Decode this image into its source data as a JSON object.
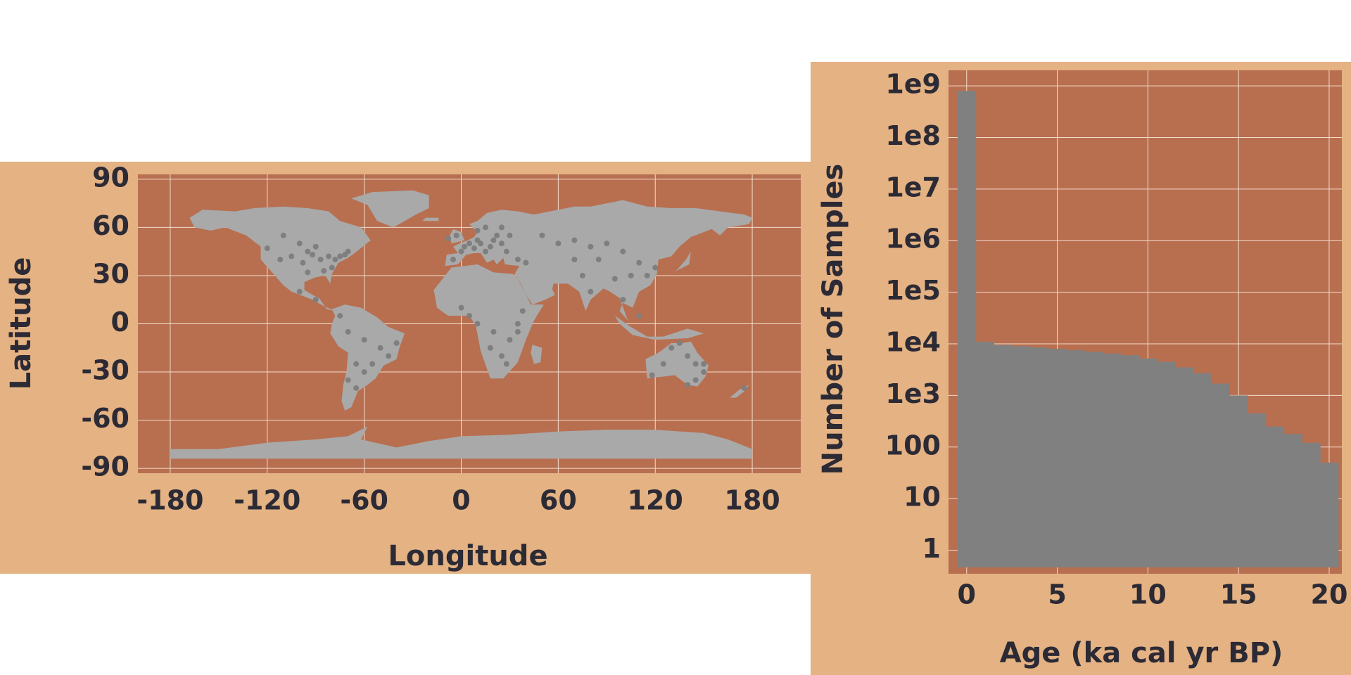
{
  "colors": {
    "panel_bg": "#e4b283",
    "plot_bg": "#b86f50",
    "grid": "#f3dccb",
    "land": "#a9a9a9",
    "samples": "#7f7f7f",
    "bars": "#808080",
    "text": "#2b2a35"
  },
  "chart_data": [
    {
      "type": "scatter",
      "title": "",
      "xlabel": "Longitude",
      "ylabel": "Latitude",
      "xlim": [
        -200,
        210
      ],
      "ylim": [
        -93,
        93
      ],
      "grid": true,
      "xticks": [
        -180,
        -120,
        -60,
        0,
        60,
        120,
        180
      ],
      "yticks": [
        90,
        60,
        30,
        0,
        -30,
        -60,
        -90
      ],
      "xtick_labels": [
        "-180",
        "-120",
        "-60",
        "0",
        "60",
        "120",
        "180"
      ],
      "ytick_labels": [
        "90",
        "60",
        "30",
        "0",
        "-30",
        "-60",
        "-90"
      ],
      "series": [
        {
          "points": [
            [
              -120,
              47
            ],
            [
              -112,
              40
            ],
            [
              -105,
              42
            ],
            [
              -98,
              38
            ],
            [
              -92,
              43
            ],
            [
              -87,
              40
            ],
            [
              -82,
              42
            ],
            [
              -78,
              40
            ],
            [
              -75,
              42
            ],
            [
              -72,
              43
            ],
            [
              -80,
              35
            ],
            [
              -85,
              33
            ],
            [
              -95,
              32
            ],
            [
              -100,
              50
            ],
            [
              -110,
              55
            ],
            [
              -90,
              48
            ],
            [
              -95,
              45
            ],
            [
              -70,
              45
            ],
            [
              -100,
              20
            ],
            [
              -90,
              15
            ],
            [
              -75,
              5
            ],
            [
              -70,
              -5
            ],
            [
              -60,
              -10
            ],
            [
              -50,
              -15
            ],
            [
              -45,
              -20
            ],
            [
              -65,
              -25
            ],
            [
              -70,
              -35
            ],
            [
              -65,
              -40
            ],
            [
              -60,
              -30
            ],
            [
              -55,
              -25
            ],
            [
              -40,
              -12
            ],
            [
              -5,
              40
            ],
            [
              0,
              45
            ],
            [
              2,
              48
            ],
            [
              5,
              50
            ],
            [
              8,
              47
            ],
            [
              10,
              52
            ],
            [
              12,
              50
            ],
            [
              15,
              45
            ],
            [
              18,
              48
            ],
            [
              20,
              52
            ],
            [
              22,
              55
            ],
            [
              25,
              50
            ],
            [
              28,
              45
            ],
            [
              10,
              58
            ],
            [
              15,
              60
            ],
            [
              25,
              60
            ],
            [
              30,
              55
            ],
            [
              35,
              40
            ],
            [
              40,
              38
            ],
            [
              -3,
              55
            ],
            [
              -8,
              53
            ],
            [
              0,
              10
            ],
            [
              5,
              5
            ],
            [
              10,
              0
            ],
            [
              20,
              -5
            ],
            [
              30,
              -10
            ],
            [
              35,
              0
            ],
            [
              25,
              -20
            ],
            [
              28,
              -25
            ],
            [
              18,
              -15
            ],
            [
              38,
              8
            ],
            [
              35,
              -5
            ],
            [
              50,
              55
            ],
            [
              60,
              50
            ],
            [
              70,
              52
            ],
            [
              80,
              48
            ],
            [
              90,
              50
            ],
            [
              100,
              45
            ],
            [
              110,
              38
            ],
            [
              115,
              30
            ],
            [
              120,
              35
            ],
            [
              105,
              30
            ],
            [
              95,
              28
            ],
            [
              75,
              30
            ],
            [
              80,
              20
            ],
            [
              100,
              15
            ],
            [
              110,
              5
            ],
            [
              70,
              40
            ],
            [
              85,
              40
            ],
            [
              130,
              -15
            ],
            [
              140,
              -20
            ],
            [
              145,
              -25
            ],
            [
              150,
              -30
            ],
            [
              145,
              -35
            ],
            [
              140,
              -38
            ],
            [
              118,
              -32
            ],
            [
              125,
              -25
            ],
            [
              135,
              -12
            ],
            [
              150,
              -25
            ],
            [
              175,
              -40
            ]
          ]
        }
      ]
    },
    {
      "type": "bar",
      "title": "",
      "xlabel": "Age (ka cal yr BP)",
      "ylabel": "Number of Samples",
      "log_y": true,
      "grid": true,
      "xlim": [
        -1,
        20.7
      ],
      "ylim": [
        0.35,
        2000000000.0
      ],
      "xticks": [
        0,
        5,
        10,
        15,
        20
      ],
      "xtick_labels": [
        "0",
        "5",
        "10",
        "15",
        "20"
      ],
      "yticks": [
        1,
        10,
        100,
        1000,
        10000,
        100000,
        1000000,
        10000000,
        100000000,
        1000000000
      ],
      "ytick_labels": [
        "1",
        "10",
        "100",
        "1e3",
        "1e4",
        "1e5",
        "1e6",
        "1e7",
        "1e8",
        "1e9"
      ],
      "bin_width": 1,
      "bins_start": [
        -0.5,
        0.5,
        1.5,
        2.5,
        3.5,
        4.5,
        5.5,
        6.5,
        7.5,
        8.5,
        9.5,
        10.5,
        11.5,
        12.5,
        13.5,
        14.5,
        15.5,
        16.5,
        17.5,
        18.5,
        19.5
      ],
      "values": [
        800000000,
        11000,
        9500,
        9000,
        8500,
        8000,
        7500,
        7000,
        6500,
        6000,
        5200,
        4500,
        3500,
        2700,
        1700,
        1000,
        450,
        250,
        180,
        120,
        50
      ]
    }
  ]
}
